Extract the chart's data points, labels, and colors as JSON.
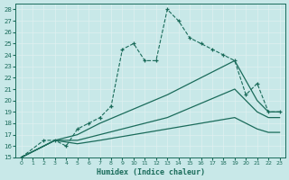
{
  "xlabel": "Humidex (Indice chaleur)",
  "xlim": [
    -0.5,
    23.5
  ],
  "ylim": [
    15,
    28.5
  ],
  "xticks": [
    0,
    1,
    2,
    3,
    4,
    5,
    6,
    7,
    8,
    9,
    10,
    11,
    12,
    13,
    14,
    15,
    16,
    17,
    18,
    19,
    20,
    21,
    22,
    23
  ],
  "yticks": [
    15,
    16,
    17,
    18,
    19,
    20,
    21,
    22,
    23,
    24,
    25,
    26,
    27,
    28
  ],
  "bg_color": "#c8e8e8",
  "line_color": "#1a6b5a",
  "grid_color": "#dff0f0",
  "lines": [
    {
      "x": [
        0,
        2,
        3,
        4,
        5,
        6,
        7,
        8,
        9,
        10,
        11,
        12,
        13,
        14,
        15,
        16,
        17,
        18,
        19,
        20,
        21,
        22,
        23
      ],
      "y": [
        15,
        16.5,
        16.5,
        16,
        17.5,
        18,
        18.5,
        19.5,
        24.5,
        25,
        23.5,
        23.5,
        28,
        27,
        25.5,
        25,
        24.5,
        24,
        23.5,
        20.5,
        21.5,
        19,
        19
      ],
      "has_markers": true
    },
    {
      "x": [
        0,
        3,
        5,
        7,
        13,
        19,
        21,
        22,
        23
      ],
      "y": [
        15,
        16.5,
        17,
        18,
        20.5,
        23.5,
        20,
        19,
        19
      ],
      "has_markers": false
    },
    {
      "x": [
        0,
        3,
        5,
        7,
        13,
        19,
        21,
        22,
        23
      ],
      "y": [
        15,
        16.5,
        16.5,
        17,
        18.5,
        21,
        19,
        18.5,
        18.5
      ],
      "has_markers": false
    },
    {
      "x": [
        0,
        3,
        5,
        7,
        13,
        19,
        21,
        22,
        23
      ],
      "y": [
        15,
        16.5,
        16.2,
        16.5,
        17.5,
        18.5,
        17.5,
        17.2,
        17.2
      ],
      "has_markers": false
    }
  ]
}
